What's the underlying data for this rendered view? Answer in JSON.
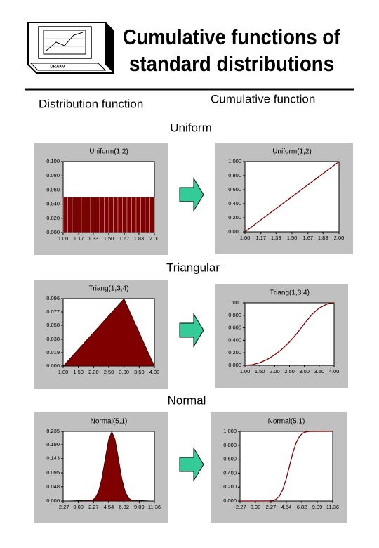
{
  "logo_text": "DRAKV",
  "title_lines": [
    "Cumulative functions of",
    "standard distributions"
  ],
  "left_heading": "Distribution function",
  "right_heading": "Cumulative function",
  "sections": [
    "Uniform",
    "Triangular",
    "Normal"
  ],
  "chart_data": [
    {
      "type": "histogram",
      "title": "Uniform(1,2)",
      "color": "#800000",
      "bins": [
        1.0,
        1.05,
        1.1,
        1.15,
        1.2,
        1.25,
        1.3,
        1.35,
        1.4,
        1.45,
        1.5,
        1.55,
        1.6,
        1.65,
        1.7,
        1.75,
        1.8,
        1.85,
        1.9,
        1.95,
        2.0
      ],
      "values": [
        0.05,
        0.05,
        0.05,
        0.05,
        0.05,
        0.05,
        0.05,
        0.05,
        0.05,
        0.05,
        0.05,
        0.05,
        0.05,
        0.05,
        0.05,
        0.05,
        0.05,
        0.05,
        0.05,
        0.05
      ],
      "xlim": [
        1.0,
        2.0
      ],
      "ylim": [
        0,
        0.1
      ],
      "xticks": [
        {
          "value": 1.0,
          "label": "1.00"
        },
        {
          "value": 1.17,
          "label": "1.17"
        },
        {
          "value": 1.33,
          "label": "1.33"
        },
        {
          "value": 1.5,
          "label": "1.50"
        },
        {
          "value": 1.67,
          "label": "1.67"
        },
        {
          "value": 1.83,
          "label": "1.83"
        },
        {
          "value": 2.0,
          "label": "2.00"
        }
      ],
      "yticks": [
        {
          "value": 0,
          "label": "0.000"
        },
        {
          "value": 0.02,
          "label": "0.020"
        },
        {
          "value": 0.04,
          "label": "0.040"
        },
        {
          "value": 0.06,
          "label": "0.060"
        },
        {
          "value": 0.08,
          "label": "0.080"
        },
        {
          "value": 0.1,
          "label": "0.100"
        }
      ]
    },
    {
      "type": "line",
      "title": "Uniform(1,2)",
      "color": "#800000",
      "x": [
        1.0,
        2.0
      ],
      "values": [
        0,
        1
      ],
      "xlim": [
        1.0,
        2.0
      ],
      "ylim": [
        0,
        1
      ],
      "xticks": [
        {
          "value": 1.0,
          "label": "1.00"
        },
        {
          "value": 1.17,
          "label": "1.17"
        },
        {
          "value": 1.33,
          "label": "1.33"
        },
        {
          "value": 1.5,
          "label": "1.50"
        },
        {
          "value": 1.67,
          "label": "1.67"
        },
        {
          "value": 1.83,
          "label": "1.83"
        },
        {
          "value": 2.0,
          "label": "2.00"
        }
      ],
      "yticks": [
        {
          "value": 0,
          "label": "0.000"
        },
        {
          "value": 0.2,
          "label": "0.200"
        },
        {
          "value": 0.4,
          "label": "0.400"
        },
        {
          "value": 0.6,
          "label": "0.600"
        },
        {
          "value": 0.8,
          "label": "0.800"
        },
        {
          "value": 1,
          "label": "1.000"
        }
      ]
    },
    {
      "type": "area",
      "title": "Triang(1,3,4)",
      "color": "#800000",
      "x": [
        1.0,
        3.0,
        4.0
      ],
      "values": [
        0,
        0.096,
        0
      ],
      "xlim": [
        1.0,
        4.0
      ],
      "ylim": [
        0,
        0.096
      ],
      "xticks": [
        {
          "value": 1.0,
          "label": "1.00"
        },
        {
          "value": 1.5,
          "label": "1.50"
        },
        {
          "value": 2.0,
          "label": "2.00"
        },
        {
          "value": 2.5,
          "label": "2.50"
        },
        {
          "value": 3.0,
          "label": "3.00"
        },
        {
          "value": 3.5,
          "label": "3.50"
        },
        {
          "value": 4.0,
          "label": "4.00"
        }
      ],
      "yticks": [
        {
          "value": 0,
          "label": "0.000"
        },
        {
          "value": 0.019,
          "label": "0.019"
        },
        {
          "value": 0.038,
          "label": "0.038"
        },
        {
          "value": 0.058,
          "label": "0.058"
        },
        {
          "value": 0.077,
          "label": "0.077"
        },
        {
          "value": 0.096,
          "label": "0.096"
        }
      ]
    },
    {
      "type": "line",
      "title": "Triang(1,3,4)",
      "color": "#800000",
      "x": [
        1.0,
        1.25,
        1.5,
        1.75,
        2.0,
        2.25,
        2.5,
        2.75,
        3.0,
        3.25,
        3.5,
        3.75,
        4.0
      ],
      "values": [
        0,
        0.01,
        0.042,
        0.094,
        0.167,
        0.26,
        0.375,
        0.51,
        0.667,
        0.8125,
        0.917,
        0.979,
        1.0
      ],
      "xlim": [
        1.0,
        4.0
      ],
      "ylim": [
        0,
        1
      ],
      "xticks": [
        {
          "value": 1.0,
          "label": "1.00"
        },
        {
          "value": 1.5,
          "label": "1.50"
        },
        {
          "value": 2.0,
          "label": "2.00"
        },
        {
          "value": 2.5,
          "label": "2.50"
        },
        {
          "value": 3.0,
          "label": "3.00"
        },
        {
          "value": 3.5,
          "label": "3.50"
        },
        {
          "value": 4.0,
          "label": "4.00"
        }
      ],
      "yticks": [
        {
          "value": 0,
          "label": "0.000"
        },
        {
          "value": 0.2,
          "label": "0.200"
        },
        {
          "value": 0.4,
          "label": "0.400"
        },
        {
          "value": 0.6,
          "label": "0.600"
        },
        {
          "value": 0.8,
          "label": "0.800"
        },
        {
          "value": 1,
          "label": "1.000"
        }
      ]
    },
    {
      "type": "area",
      "title": "Normal(5,1)",
      "color": "#800000",
      "x": [
        -2.27,
        2.0,
        2.5,
        3.0,
        3.5,
        4.0,
        4.5,
        5.0,
        5.5,
        6.0,
        6.5,
        7.0,
        7.5,
        8.0,
        11.36
      ],
      "values": [
        0,
        0.003,
        0.01,
        0.032,
        0.076,
        0.143,
        0.207,
        0.235,
        0.207,
        0.143,
        0.076,
        0.032,
        0.01,
        0.003,
        0
      ],
      "xlim": [
        -2.27,
        11.36
      ],
      "ylim": [
        0,
        0.235
      ],
      "xticks": [
        {
          "value": -2.27,
          "label": "-2.27"
        },
        {
          "value": 0,
          "label": "0.00"
        },
        {
          "value": 2.27,
          "label": "2.27"
        },
        {
          "value": 4.54,
          "label": "4.54"
        },
        {
          "value": 6.82,
          "label": "6.82"
        },
        {
          "value": 9.09,
          "label": "9.09"
        },
        {
          "value": 11.36,
          "label": "11.36"
        }
      ],
      "yticks": [
        {
          "value": 0,
          "label": "0.000"
        },
        {
          "value": 0.048,
          "label": "0.048"
        },
        {
          "value": 0.095,
          "label": "0.095"
        },
        {
          "value": 0.143,
          "label": "0.143"
        },
        {
          "value": 0.19,
          "label": "0.190"
        },
        {
          "value": 0.235,
          "label": "0.235"
        }
      ]
    },
    {
      "type": "line",
      "title": "Normal(5,1)",
      "color": "#800000",
      "x": [
        -2.27,
        2.0,
        2.5,
        3.0,
        3.5,
        4.0,
        4.5,
        5.0,
        5.5,
        6.0,
        6.5,
        7.0,
        7.5,
        8.0,
        11.36
      ],
      "values": [
        0,
        0.001,
        0.006,
        0.023,
        0.067,
        0.159,
        0.309,
        0.5,
        0.691,
        0.841,
        0.933,
        0.977,
        0.994,
        0.999,
        1
      ],
      "xlim": [
        -2.27,
        11.36
      ],
      "ylim": [
        0,
        1
      ],
      "xticks": [
        {
          "value": -2.27,
          "label": "-2.27"
        },
        {
          "value": 0,
          "label": "0.00"
        },
        {
          "value": 2.27,
          "label": "2.27"
        },
        {
          "value": 4.54,
          "label": "4.54"
        },
        {
          "value": 6.82,
          "label": "6.82"
        },
        {
          "value": 9.09,
          "label": "9.09"
        },
        {
          "value": 11.36,
          "label": "11.36"
        }
      ],
      "yticks": [
        {
          "value": 0,
          "label": "0.000"
        },
        {
          "value": 0.2,
          "label": "0.200"
        },
        {
          "value": 0.4,
          "label": "0.400"
        },
        {
          "value": 0.6,
          "label": "0.600"
        },
        {
          "value": 0.8,
          "label": "0.800"
        },
        {
          "value": 1,
          "label": "1.000"
        }
      ]
    }
  ]
}
